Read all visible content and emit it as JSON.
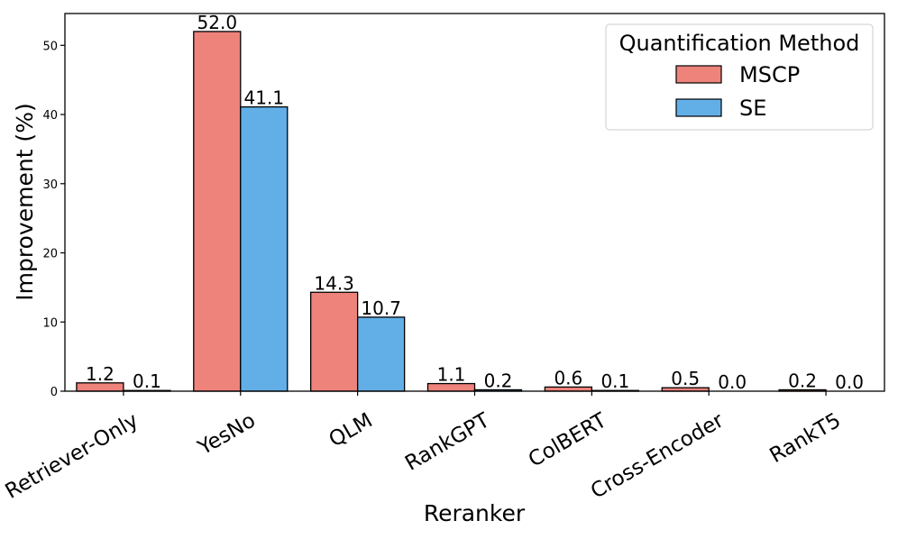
{
  "chart_data": {
    "type": "bar",
    "title": "",
    "xlabel": "Reranker",
    "ylabel": "Improvement (%)",
    "ylim": [
      0,
      54.6
    ],
    "yticks": [
      0,
      10,
      20,
      30,
      40,
      50
    ],
    "categories": [
      "Retriever-Only",
      "YesNo",
      "QLM",
      "RankGPT",
      "ColBERT",
      "Cross-Encoder",
      "RankT5"
    ],
    "series": [
      {
        "name": "MSCP",
        "color": "#ee837b",
        "values": [
          1.2,
          52.0,
          14.3,
          1.1,
          0.6,
          0.5,
          0.2
        ]
      },
      {
        "name": "SE",
        "color": "#62afe8",
        "values": [
          0.1,
          41.1,
          10.7,
          0.2,
          0.1,
          0.0,
          0.0
        ]
      }
    ],
    "legend": {
      "title": "Quantification Method",
      "position": "top-right"
    },
    "grid": false
  }
}
